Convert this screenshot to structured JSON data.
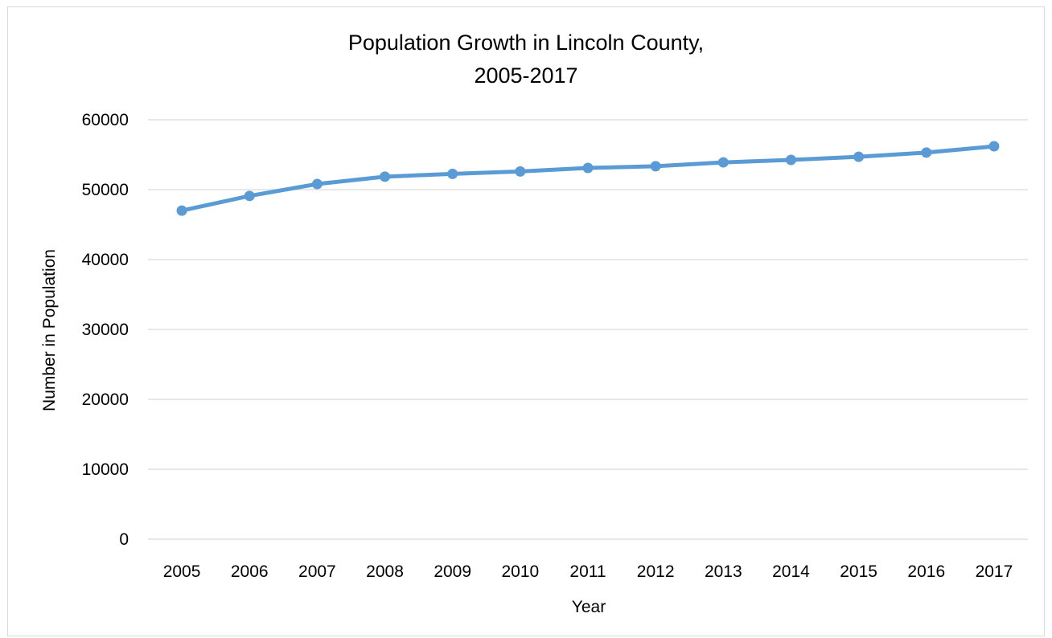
{
  "chart_data": {
    "type": "line",
    "title_lines": [
      "Population Growth in Lincoln County,",
      "2005-2017"
    ],
    "xlabel": "Year",
    "ylabel": "Number in Population",
    "categories": [
      "2005",
      "2006",
      "2007",
      "2008",
      "2009",
      "2010",
      "2011",
      "2012",
      "2013",
      "2014",
      "2015",
      "2016",
      "2017"
    ],
    "series": [
      {
        "values": [
          47000,
          49100,
          50800,
          51850,
          52250,
          52600,
          53100,
          53350,
          53900,
          54250,
          54700,
          55300,
          56200
        ],
        "color": "#5b9bd5"
      }
    ],
    "yticks": [
      "0",
      "10000",
      "20000",
      "30000",
      "40000",
      "50000",
      "60000"
    ],
    "ylim": [
      0,
      60000
    ],
    "grid": true,
    "gridline_color": "#d9d9d9",
    "legend": "none"
  }
}
